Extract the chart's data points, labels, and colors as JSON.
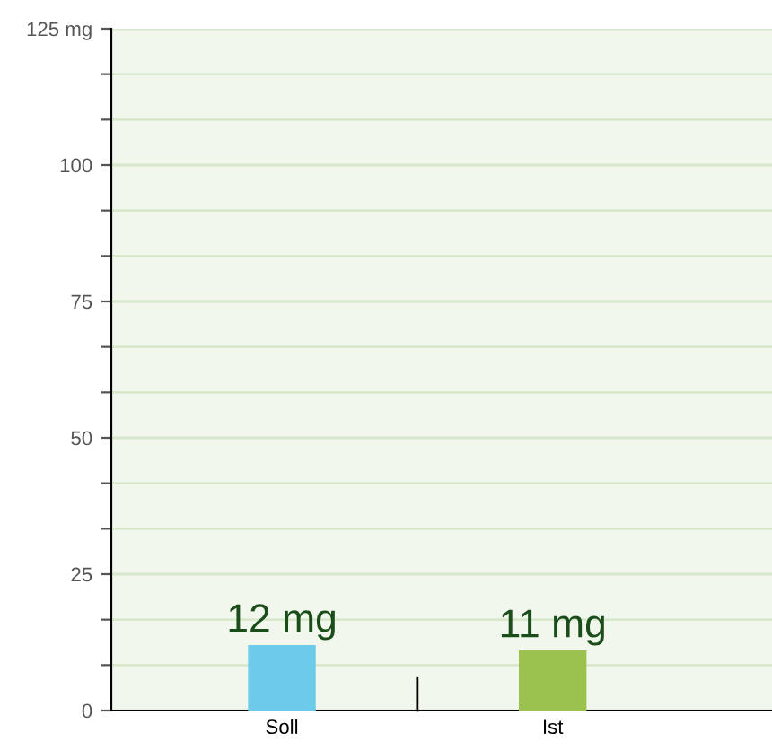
{
  "chart_data": {
    "type": "bar",
    "categories": [
      "Soll",
      "Ist"
    ],
    "values": [
      12,
      11
    ],
    "colors": [
      "#6ccbe8",
      "#9bc24f"
    ],
    "value_labels": [
      "12 mg",
      "11 mg"
    ],
    "ylim": [
      0,
      125
    ],
    "yticks": [
      0,
      {
        "value": 8.33,
        "label": null
      },
      {
        "value": 16.67,
        "label": null
      },
      25,
      {
        "value": 33.33,
        "label": null
      },
      {
        "value": 41.67,
        "label": null
      },
      50,
      {
        "value": 58.33,
        "label": null
      },
      {
        "value": 66.67,
        "label": null
      },
      75,
      {
        "value": 83.33,
        "label": null
      },
      {
        "value": 91.67,
        "label": null
      },
      100,
      {
        "value": 108.33,
        "label": null
      },
      {
        "value": 116.67,
        "label": null
      },
      {
        "value": 125,
        "label": "125 mg"
      }
    ],
    "grid": "y"
  }
}
